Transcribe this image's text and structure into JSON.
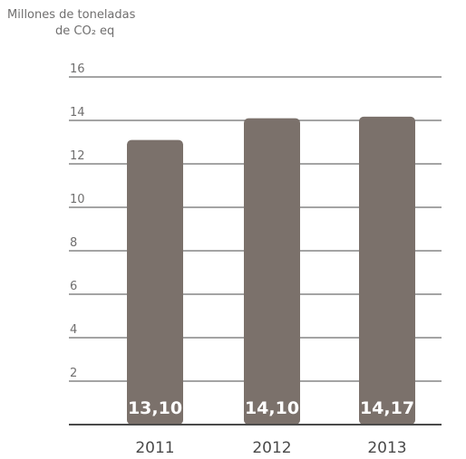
{
  "chart_data": {
    "type": "bar",
    "title": "",
    "ylabel_line1": "Millones de toneladas",
    "ylabel_line2": "de CO₂ eq",
    "xlabel": "",
    "categories": [
      "2011",
      "2012",
      "2013"
    ],
    "values": [
      13.1,
      14.1,
      14.17
    ],
    "value_labels": [
      "13,10",
      "14,10",
      "14,17"
    ],
    "yticks": [
      "2",
      "4",
      "6",
      "8",
      "10",
      "12",
      "14",
      "16"
    ],
    "ylim": [
      0,
      16
    ],
    "grid": true,
    "legend": "none",
    "bar_color": "#7b716b",
    "grid_color": "#4a4a4a"
  }
}
